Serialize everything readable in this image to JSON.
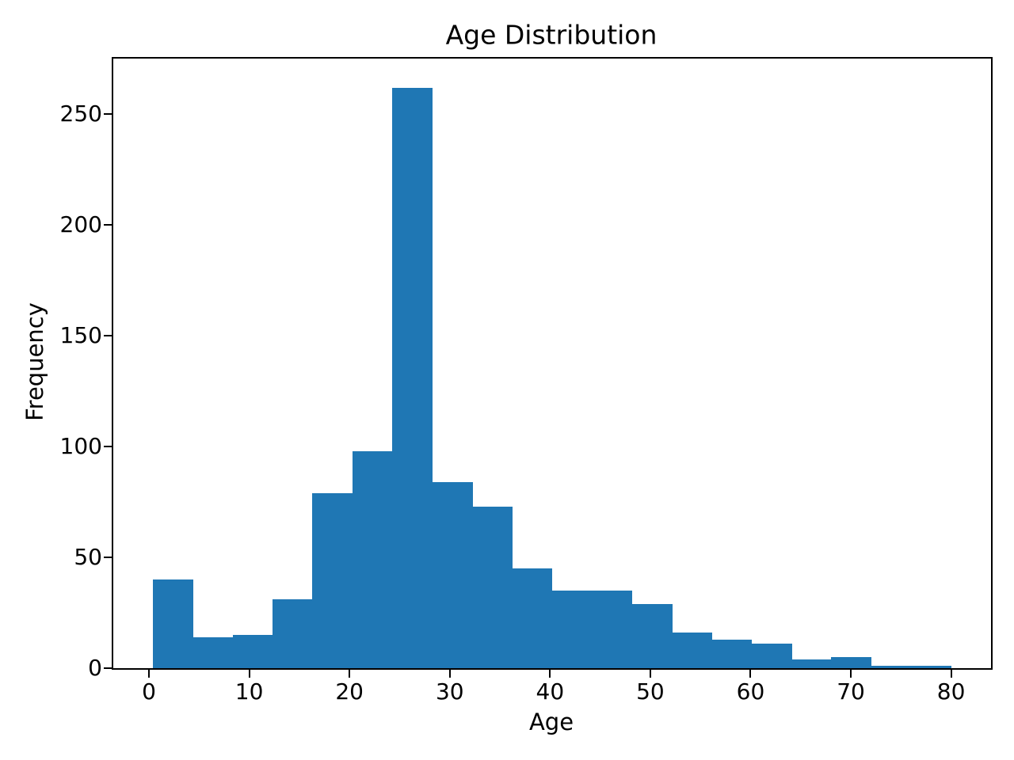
{
  "figure": {
    "background": "#ffffff",
    "spine_color": "#000000",
    "text_color": "#000000"
  },
  "chart_data": {
    "type": "bar",
    "subtype": "histogram",
    "title": "Age Distribution",
    "xlabel": "Age",
    "ylabel": "Frequency",
    "bar_color": "#1f77b4",
    "grid": false,
    "legend": null,
    "bin_edges": [
      0.42,
      4.399,
      8.378,
      12.357,
      16.336,
      20.315,
      24.294,
      28.273,
      32.252,
      36.231,
      40.21,
      44.189,
      48.168,
      52.147,
      56.126,
      60.105,
      64.084,
      68.063,
      72.042,
      76.021,
      80.0
    ],
    "counts": [
      40,
      14,
      15,
      31,
      79,
      98,
      262,
      84,
      73,
      45,
      35,
      35,
      29,
      16,
      13,
      11,
      4,
      5,
      1,
      1
    ],
    "x_ticks": [
      0,
      10,
      20,
      30,
      40,
      50,
      60,
      70,
      80
    ],
    "y_ticks": [
      0,
      50,
      100,
      150,
      200,
      250
    ],
    "xlim": [
      -3.56,
      83.98
    ],
    "ylim": [
      0,
      275.1
    ]
  }
}
